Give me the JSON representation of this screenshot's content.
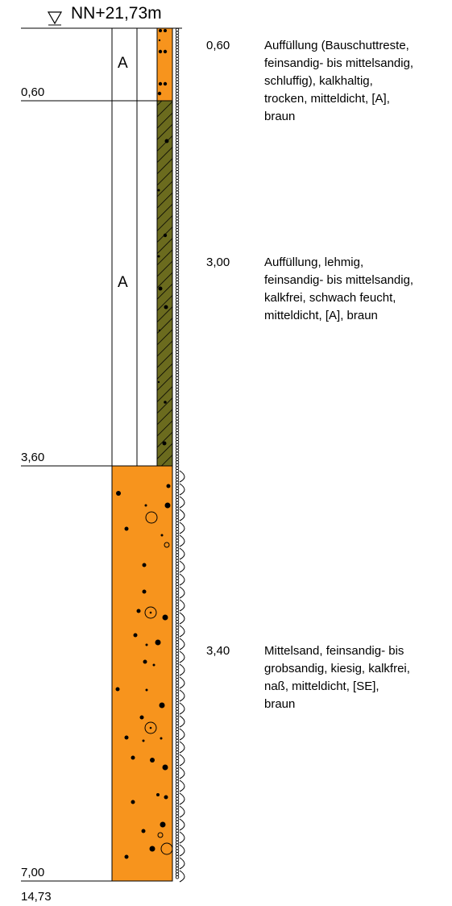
{
  "header": {
    "elevation_label": "NN+21,73m"
  },
  "layers": [
    {
      "bottom_depth_label": "0,60",
      "thickness_label": "0,60",
      "soil_code": "A",
      "fill_color": "#f7941d",
      "pattern": "fill-with-rubble",
      "description_lines": [
        "Auffüllung (Bauschuttreste,",
        "feinsandig- bis mittelsandig,",
        "schluffig), kalkhaltig,",
        "trocken, mitteldicht, [A],",
        "braun"
      ]
    },
    {
      "bottom_depth_label": "3,60",
      "thickness_label": "3,00",
      "soil_code": "A",
      "fill_color": "#6b6b1e",
      "pattern": "hatched-loam",
      "description_lines": [
        "Auffüllung, lehmig,",
        "feinsandig- bis mittelsandig,",
        "kalkfrei, schwach feucht,",
        "mitteldicht, [A], braun"
      ]
    },
    {
      "bottom_depth_label": "7,00",
      "thickness_label": "3,40",
      "soil_code": "",
      "fill_color": "#f7941d",
      "pattern": "sand-gravel-dots",
      "description_lines": [
        "Mittelsand, feinsandig- bis",
        "grobsandig, kiesig, kalkfrei,",
        "naß, mitteldicht, [SE],",
        "braun"
      ]
    }
  ],
  "footer": {
    "bottom_elevation_label": "14,73"
  },
  "colors": {
    "orange_fill": "#f7941d",
    "olive_fill": "#6b6b1e",
    "line": "#000000"
  }
}
